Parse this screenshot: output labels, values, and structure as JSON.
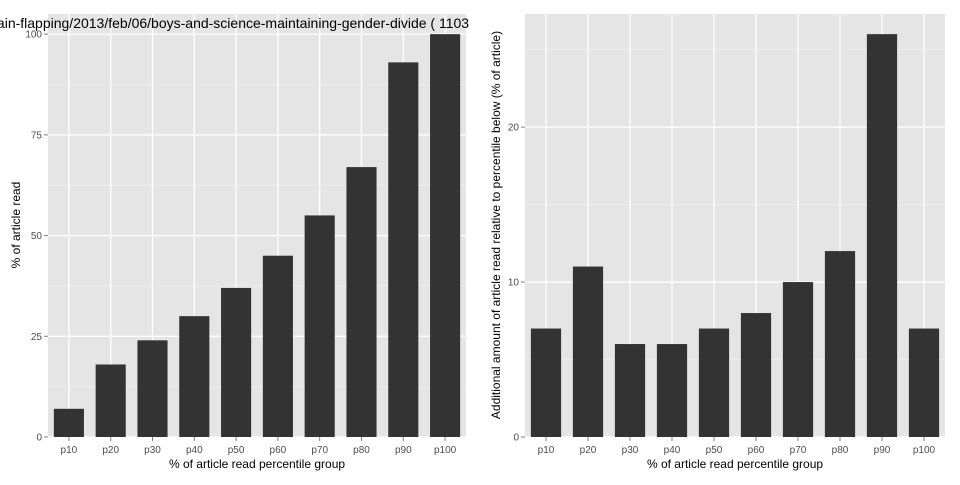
{
  "chart_data": [
    {
      "type": "bar",
      "title": "ain-flapping/2013/feb/06/boys-and-science-maintaining-gender-divide ( 1103",
      "xlabel": "% of article read percentile group",
      "ylabel": "% of article read",
      "categories": [
        "p10",
        "p20",
        "p30",
        "p40",
        "p50",
        "p60",
        "p70",
        "p80",
        "p90",
        "p100"
      ],
      "values": [
        7,
        18,
        24,
        30,
        37,
        45,
        55,
        67,
        93,
        100
      ],
      "ylim": [
        0,
        105
      ],
      "yticks": [
        0,
        25,
        50,
        75,
        100
      ],
      "grid": true,
      "colors": {
        "bar": "#333333",
        "panel": "#e5e5e5",
        "gridline": "#ffffff"
      }
    },
    {
      "type": "bar",
      "title": "",
      "xlabel": "% of article read percentile group",
      "ylabel": "Additional amount of article read relative to percentile below (% of article)",
      "categories": [
        "p10",
        "p20",
        "p30",
        "p40",
        "p50",
        "p60",
        "p70",
        "p80",
        "p90",
        "p100"
      ],
      "values": [
        7,
        11,
        6,
        6,
        7,
        8,
        10,
        12,
        26,
        7
      ],
      "ylim": [
        0,
        27.3
      ],
      "yticks": [
        0,
        10,
        20
      ],
      "grid": true,
      "colors": {
        "bar": "#333333",
        "panel": "#e5e5e5",
        "gridline": "#ffffff"
      }
    }
  ]
}
